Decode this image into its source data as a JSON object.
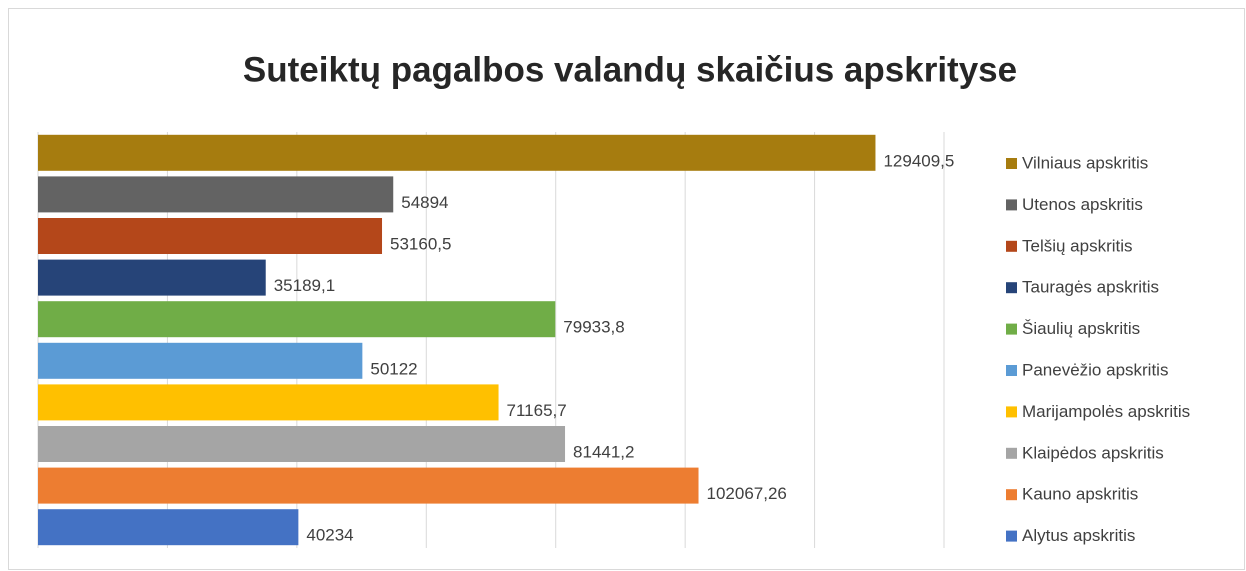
{
  "chart_data": {
    "type": "bar",
    "orientation": "horizontal",
    "title": "Suteiktų pagalbos valandų skaičius apskrityse",
    "categories": [
      "Vilniaus apskritis",
      "Utenos apskritis",
      "Telšių apskritis",
      "Tauragės apskritis",
      "Šiaulių apskritis",
      "Panevėžio apskritis",
      "Marijampolės apskritis",
      "Klaipėdos apskritis",
      "Kauno apskritis",
      "Alytus apskritis"
    ],
    "values": [
      129409.5,
      54894,
      53160.5,
      35189.1,
      79933.8,
      50122,
      71165.7,
      81441.2,
      102067.26,
      40234
    ],
    "value_labels": [
      "129409,5",
      "54894",
      "53160,5",
      "35189,1",
      "79933,8",
      "50122",
      "71165,7",
      "81441,2",
      "102067,26",
      "40234"
    ],
    "colors": [
      "#a67c0f",
      "#636363",
      "#b4471a",
      "#264478",
      "#70ad47",
      "#5b9bd5",
      "#ffc000",
      "#a5a5a5",
      "#ed7d31",
      "#4472c4"
    ],
    "xlim": [
      0,
      140000
    ],
    "xticks": [
      0,
      20000,
      40000,
      60000,
      80000,
      100000,
      120000,
      140000
    ],
    "grid": true,
    "legend": "right"
  }
}
